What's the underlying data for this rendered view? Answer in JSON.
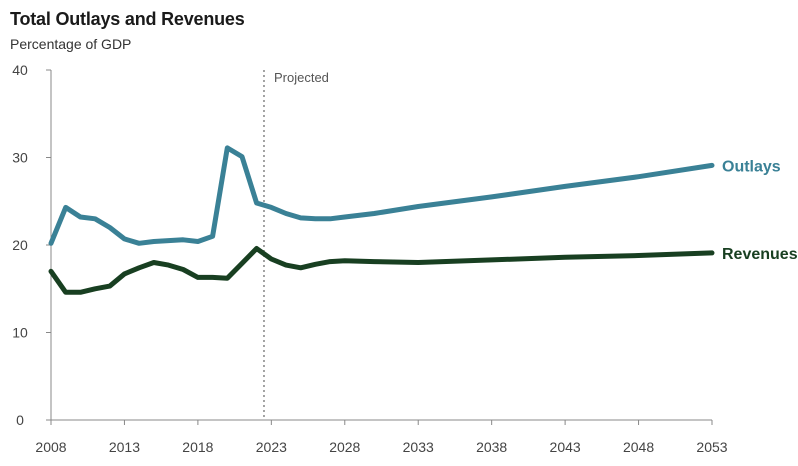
{
  "title": "Total Outlays and Revenues",
  "subtitle": "Percentage of GDP",
  "colors": {
    "outlays": "#3a8196",
    "revenues": "#183f21",
    "axis": "#888888",
    "marker": "#666666"
  },
  "chart_data": {
    "type": "line",
    "title": "Total Outlays and Revenues",
    "ylabel": "Percentage of GDP",
    "xlabel": "",
    "xlim": [
      2008,
      2053
    ],
    "ylim": [
      0,
      40
    ],
    "yticks": [
      0,
      10,
      20,
      30,
      40
    ],
    "xticks": [
      2008,
      2013,
      2018,
      2023,
      2028,
      2033,
      2038,
      2043,
      2048,
      2053
    ],
    "grid": false,
    "annotations": [
      {
        "text": "Projected",
        "x": 2022.5
      }
    ],
    "series": [
      {
        "name": "Outlays",
        "color": "#3a8196",
        "x": [
          2008,
          2009,
          2010,
          2011,
          2012,
          2013,
          2014,
          2015,
          2016,
          2017,
          2018,
          2019,
          2020,
          2021,
          2022,
          2023,
          2024,
          2025,
          2026,
          2027,
          2028,
          2030,
          2033,
          2038,
          2043,
          2048,
          2053
        ],
        "values": [
          20.2,
          24.3,
          23.2,
          23.0,
          22.0,
          20.7,
          20.2,
          20.4,
          20.5,
          20.6,
          20.4,
          21.0,
          31.1,
          30.1,
          24.8,
          24.3,
          23.6,
          23.1,
          23.0,
          23.0,
          23.2,
          23.6,
          24.4,
          25.5,
          26.7,
          27.8,
          29.1
        ]
      },
      {
        "name": "Revenues",
        "color": "#183f21",
        "x": [
          2008,
          2009,
          2010,
          2011,
          2012,
          2013,
          2014,
          2015,
          2016,
          2017,
          2018,
          2019,
          2020,
          2021,
          2022,
          2023,
          2024,
          2025,
          2026,
          2027,
          2028,
          2030,
          2033,
          2038,
          2043,
          2048,
          2053
        ],
        "values": [
          17.0,
          14.6,
          14.6,
          15.0,
          15.3,
          16.7,
          17.4,
          18.0,
          17.7,
          17.2,
          16.3,
          16.3,
          16.2,
          17.9,
          19.6,
          18.4,
          17.7,
          17.4,
          17.8,
          18.1,
          18.2,
          18.1,
          18.0,
          18.3,
          18.6,
          18.8,
          19.1
        ]
      }
    ]
  }
}
